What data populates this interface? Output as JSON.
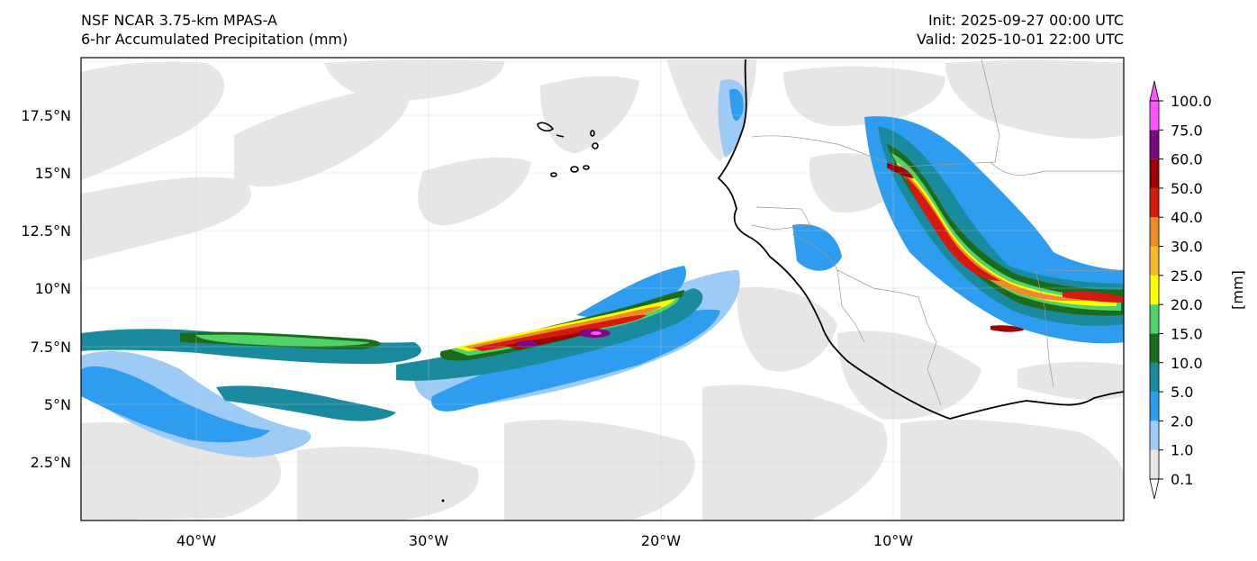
{
  "header": {
    "model": "NSF NCAR 3.75-km MPAS-A",
    "field": "6-hr Accumulated Precipitation (mm)",
    "init": "Init: 2025-09-27 00:00 UTC",
    "valid": "Valid: 2025-10-01 22:00 UTC"
  },
  "axes": {
    "lon_ticks": [
      "40°W",
      "30°W",
      "20°W",
      "10°W"
    ],
    "lat_ticks": [
      "17.5°N",
      "15°N",
      "12.5°N",
      "10°N",
      "7.5°N",
      "5°N",
      "2.5°N"
    ]
  },
  "colorbar": {
    "unit_label": "[mm]",
    "levels": [
      "0.1",
      "1.0",
      "2.0",
      "5.0",
      "10.0",
      "15.0",
      "20.0",
      "25.0",
      "30.0",
      "40.0",
      "50.0",
      "60.0",
      "75.0",
      "100.0"
    ],
    "colors": [
      "#e6e6e6",
      "#9ecbf5",
      "#2e9df0",
      "#1a8a9e",
      "#1b6b1b",
      "#4fd36a",
      "#ffff00",
      "#f5b82e",
      "#ef8a28",
      "#d61a10",
      "#9c0000",
      "#7c0a7c",
      "#ff55ff"
    ]
  },
  "colors": {
    "coastline": "#000000",
    "border": "#999999",
    "light_precip": "#e6e6e6"
  }
}
